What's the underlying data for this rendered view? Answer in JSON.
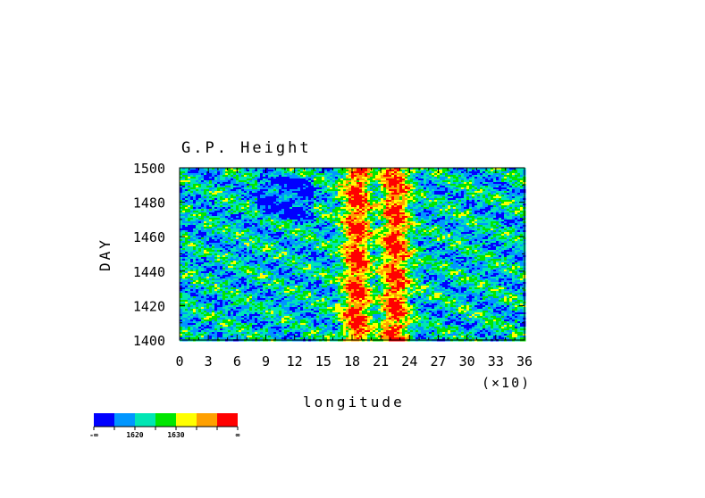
{
  "chart_data": {
    "type": "heatmap",
    "title": "G.P. Height",
    "xlabel": "longitude",
    "ylabel": "DAY",
    "x_multiplier_label": "(×10)",
    "xlim": [
      0,
      36
    ],
    "ylim": [
      1400,
      1500
    ],
    "x_ticks": [
      "0",
      "3",
      "6",
      "9",
      "12",
      "15",
      "18",
      "21",
      "24",
      "27",
      "30",
      "33",
      "36"
    ],
    "y_ticks": [
      "1400",
      "1420",
      "1440",
      "1460",
      "1480",
      "1500"
    ],
    "grid": false,
    "colorbar": {
      "position": "bottom-left",
      "colors": [
        "#0000ff",
        "#0096ff",
        "#00e6b4",
        "#00e600",
        "#ffff00",
        "#ffa000",
        "#ff0000"
      ],
      "labels": [
        "-∞",
        "1620",
        "1630",
        "∞"
      ]
    },
    "pattern_summary": {
      "high_band_1_x": [
        17,
        20
      ],
      "high_band_2_x": [
        21,
        24
      ],
      "low_region_x": [
        8,
        14
      ],
      "low_region_y": [
        1470,
        1495
      ]
    }
  }
}
